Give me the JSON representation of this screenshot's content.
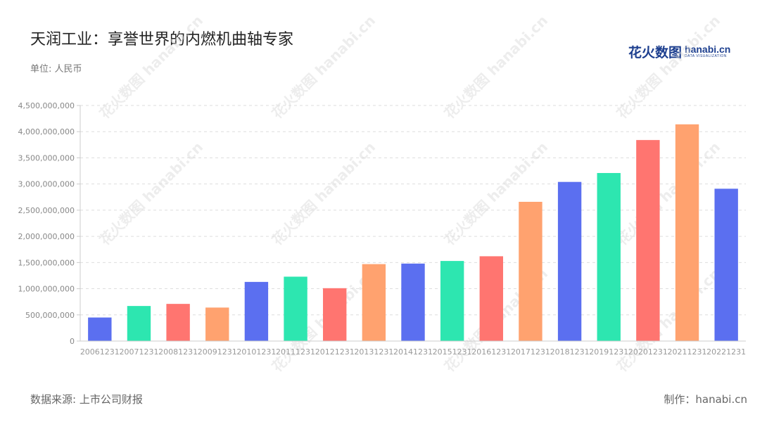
{
  "header": {
    "title": "天润工业：享誉世界的内燃机曲轴专家",
    "unit": "单位: 人民币"
  },
  "logo": {
    "cn": "花火数图",
    "en": "hanabi.cn",
    "sub": "DATA VISUALIZATION"
  },
  "footer": {
    "source": "数据来源: 上市公司财报",
    "credit": "制作：hanabi.cn"
  },
  "watermark": "花火数图 hanabi.cn",
  "chart_data": {
    "type": "bar",
    "title": "天润工业：享誉世界的内燃机曲轴专家",
    "ylabel": "单位: 人民币",
    "ylim": [
      0,
      4500000000
    ],
    "yticks": [
      0,
      500000000,
      1000000000,
      1500000000,
      2000000000,
      2500000000,
      3000000000,
      3500000000,
      4000000000,
      4500000000
    ],
    "ytick_labels": [
      "0",
      "500,000,000",
      "1,000,000,000",
      "1,500,000,000",
      "2,000,000,000",
      "2,500,000,000",
      "3,000,000,000",
      "3,500,000,000",
      "4,000,000,000",
      "4,500,000,000"
    ],
    "grid": true,
    "categories": [
      "20061231",
      "20071231",
      "20081231",
      "20091231",
      "20101231",
      "20111231",
      "20121231",
      "20131231",
      "20141231",
      "20151231",
      "20161231",
      "20171231",
      "20181231",
      "20191231",
      "20201231",
      "20211231",
      "20221231"
    ],
    "values": [
      450000000,
      670000000,
      710000000,
      640000000,
      1130000000,
      1230000000,
      1010000000,
      1470000000,
      1480000000,
      1530000000,
      1620000000,
      2660000000,
      3040000000,
      3210000000,
      3840000000,
      4140000000,
      2910000000
    ],
    "colors": [
      "#5b6ff0",
      "#2de6b0",
      "#ff7570",
      "#ffa26f"
    ]
  }
}
